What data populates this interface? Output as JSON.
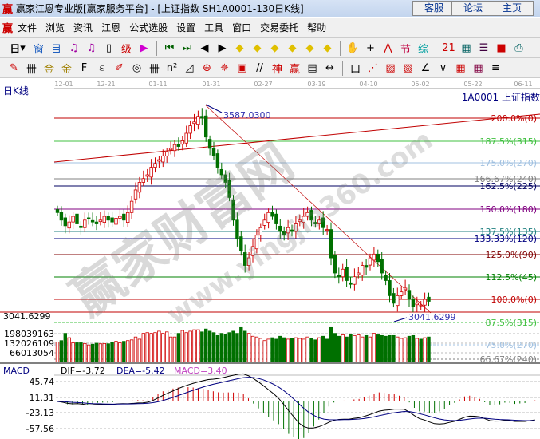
{
  "window": {
    "title": "赢家江恩专业版[赢家服务平台] - [上证指数  SH1A0001-130日K线]",
    "logo": "赢",
    "buttons": [
      "客服",
      "论坛",
      "主页"
    ]
  },
  "menu": {
    "logo": "赢",
    "items": [
      "文件",
      "浏览",
      "资讯",
      "江恩",
      "公式选股",
      "设置",
      "工具",
      "窗口",
      "交易委托",
      "帮助"
    ]
  },
  "toolbar1": {
    "period_label": "日",
    "icons": [
      {
        "n": "window-icon",
        "g": "窗",
        "c": "#2060c0"
      },
      {
        "n": "note-icon",
        "g": "目",
        "c": "#2060c0"
      },
      {
        "n": "chart3-icon",
        "g": "♫",
        "c": "#a000a0"
      },
      {
        "n": "chart9-icon",
        "g": "♫",
        "c": "#a000a0"
      },
      {
        "n": "candle-icon",
        "g": "▯",
        "c": "#000"
      },
      {
        "n": "level-icon",
        "g": "级",
        "c": "#c00"
      },
      {
        "n": "flag-icon",
        "g": "▶",
        "c": "#d000d0"
      },
      {
        "n": "first-icon",
        "g": "⏮",
        "c": "#006000"
      },
      {
        "n": "last-icon",
        "g": "⏭",
        "c": "#006000"
      },
      {
        "n": "prev-icon",
        "g": "◀",
        "c": "#000"
      },
      {
        "n": "next-icon",
        "g": "▶",
        "c": "#000"
      },
      {
        "n": "zoom-left-icon",
        "g": "◆",
        "c": "#e0c000"
      },
      {
        "n": "zoom-right-icon",
        "g": "◆",
        "c": "#e0c000"
      },
      {
        "n": "expand-icon",
        "g": "◆",
        "c": "#e0c000"
      },
      {
        "n": "shrink-icon",
        "g": "◆",
        "c": "#e0c000"
      },
      {
        "n": "vexpand-icon",
        "g": "◆",
        "c": "#e0c000"
      },
      {
        "n": "vshrink-icon",
        "g": "◆",
        "c": "#e0c000"
      },
      {
        "n": "hand-icon",
        "g": "✋",
        "c": "#000"
      },
      {
        "n": "crosshair-icon",
        "g": "+",
        "c": "#000"
      },
      {
        "n": "line-icon",
        "g": "⋀",
        "c": "#c00"
      },
      {
        "n": "section-icon",
        "g": "节",
        "c": "#c00040"
      },
      {
        "n": "gann-icon",
        "g": "综",
        "c": "#00a0a0"
      },
      {
        "n": "calendar-icon",
        "g": "21",
        "c": "#c00"
      },
      {
        "n": "calculator-icon",
        "g": "▦",
        "c": "#006060"
      },
      {
        "n": "report-icon",
        "g": "☰",
        "c": "#400040"
      },
      {
        "n": "save-icon",
        "g": "■",
        "c": "#c00"
      },
      {
        "n": "print-icon",
        "g": "⎙",
        "c": "#006060"
      }
    ]
  },
  "toolbar2": {
    "icons": [
      {
        "n": "pen-icon",
        "g": "✎",
        "c": "#c00"
      },
      {
        "n": "grid-icon",
        "g": "卌",
        "c": "#000"
      },
      {
        "n": "gold1-icon",
        "g": "金",
        "c": "#a08000"
      },
      {
        "n": "gold2-icon",
        "g": "金",
        "c": "#a08000"
      },
      {
        "n": "fib-icon",
        "g": "F",
        "c": "#000"
      },
      {
        "n": "spiral-icon",
        "g": "ಽ",
        "c": "#000"
      },
      {
        "n": "eraser-icon",
        "g": "✐",
        "c": "#c00"
      },
      {
        "n": "circle-icon",
        "g": "◎",
        "c": "#000"
      },
      {
        "n": "lines-icon",
        "g": "卌",
        "c": "#000"
      },
      {
        "n": "n2-icon",
        "g": "n²",
        "c": "#000"
      },
      {
        "n": "angle-icon",
        "g": "◿",
        "c": "#000"
      },
      {
        "n": "target-icon",
        "g": "⊕",
        "c": "#c00"
      },
      {
        "n": "star-icon",
        "g": "✵",
        "c": "#c00"
      },
      {
        "n": "square-icon",
        "g": "▣",
        "c": "#c00"
      },
      {
        "n": "parallel-icon",
        "g": "//",
        "c": "#000"
      },
      {
        "n": "god-icon",
        "g": "神",
        "c": "#c00"
      },
      {
        "n": "win-icon",
        "g": "赢",
        "c": "#c00"
      },
      {
        "n": "ruler-icon",
        "g": "▤",
        "c": "#000"
      },
      {
        "n": "width-icon",
        "g": "↔",
        "c": "#000"
      },
      {
        "n": "box-icon",
        "g": "口",
        "c": "#000"
      },
      {
        "n": "fan-icon",
        "g": "⋰",
        "c": "#c00"
      },
      {
        "n": "gann-box-icon",
        "g": "▨",
        "c": "#c00"
      },
      {
        "n": "gann-fan-icon",
        "g": "▧",
        "c": "#c00"
      },
      {
        "n": "angle-line-icon",
        "g": "∠",
        "c": "#000"
      },
      {
        "n": "wave-icon",
        "g": "∨",
        "c": "#000"
      },
      {
        "n": "grid1-icon",
        "g": "▦",
        "c": "#c00"
      },
      {
        "n": "grid2-icon",
        "g": "▦",
        "c": "#800040"
      },
      {
        "n": "hatch-icon",
        "g": "≡",
        "c": "#000"
      }
    ]
  },
  "chart_data": {
    "type": "candlestick",
    "title": "日K线",
    "symbol_label": "1A0001  上证指数",
    "date_ticks": [
      "12-01",
      "12-21",
      "01-11",
      "01-31",
      "02-27",
      "03-19",
      "04-10",
      "05-02",
      "05-22",
      "06-11"
    ],
    "high_label": "3587.0300",
    "low_label": "3041.6299",
    "left_price_label": "3041.6299",
    "high": 3587.03,
    "low": 3041.6299,
    "closes": [
      3320,
      3300,
      3285,
      3295,
      3310,
      3290,
      3280,
      3300,
      3305,
      3295,
      3290,
      3300,
      3310,
      3300,
      3295,
      3305,
      3310,
      3300,
      3320,
      3350,
      3380,
      3400,
      3410,
      3420,
      3440,
      3450,
      3460,
      3470,
      3480,
      3490,
      3500,
      3495,
      3510,
      3530,
      3550,
      3560,
      3575,
      3570,
      3520,
      3490,
      3470,
      3440,
      3420,
      3400,
      3360,
      3300,
      3250,
      3220,
      3180,
      3200,
      3230,
      3260,
      3280,
      3300,
      3320,
      3310,
      3290,
      3270,
      3260,
      3280,
      3270,
      3290,
      3300,
      3310,
      3320,
      3300,
      3290,
      3300,
      3280,
      3275,
      3200,
      3160,
      3150,
      3170,
      3140,
      3130,
      3150,
      3160,
      3180,
      3175,
      3200,
      3210,
      3190,
      3160,
      3140,
      3100,
      3080,
      3100,
      3110,
      3120,
      3090,
      3070,
      3080,
      3075,
      3090,
      3085
    ],
    "fib_levels": [
      {
        "label": "200.0%(0)",
        "color": "#c00000"
      },
      {
        "label": "187.5%(315)",
        "color": "#40c040"
      },
      {
        "label": "175.0%(270)",
        "color": "#a0c0e0"
      },
      {
        "label": "166.67%(240)",
        "color": "#808080"
      },
      {
        "label": "162.5%(225)",
        "color": "#000060"
      },
      {
        "label": "150.0%(180)",
        "color": "#800080"
      },
      {
        "label": "137.5%(135)",
        "color": "#208080"
      },
      {
        "label": "133.33%(120)",
        "color": "#000080"
      },
      {
        "label": "125.0%(90)",
        "color": "#800000"
      },
      {
        "label": "112.5%(45)",
        "color": "#008000"
      },
      {
        "label": "100.0%(0)",
        "color": "#c00000"
      },
      {
        "label": "87.5%(315)",
        "color": "#40c040"
      },
      {
        "label": "75.0%(270)",
        "color": "#a0c0e0"
      },
      {
        "label": "66.67%(240)",
        "color": "#808080"
      }
    ],
    "volume": {
      "ticks": [
        "198039163",
        "132026109",
        "66013054"
      ],
      "values": [
        140,
        150,
        200,
        170,
        135,
        135,
        135,
        130,
        120,
        125,
        132,
        128,
        130,
        128,
        140,
        145,
        135,
        145,
        150,
        155,
        175,
        160,
        200,
        205,
        200,
        205,
        215,
        200,
        210,
        175,
        175,
        200,
        220,
        205,
        215,
        225,
        225,
        210,
        230,
        215,
        205,
        185,
        200,
        195,
        205,
        215,
        200,
        240,
        215,
        200,
        180,
        175,
        165,
        150,
        160,
        170,
        160,
        180,
        170,
        160,
        165,
        170,
        165,
        160,
        175,
        165,
        155,
        170,
        180,
        160,
        240,
        200,
        180,
        190,
        175,
        195,
        185,
        190,
        175,
        185,
        175,
        200,
        190,
        185,
        180,
        185,
        185,
        175,
        165,
        170,
        180,
        185,
        165,
        160,
        170,
        175
      ]
    },
    "macd": {
      "label": "MACD",
      "dif_label": "DIF=-3.72",
      "dea_label": "DEA=-5.42",
      "macd_label": "MACD=3.40",
      "ticks": [
        "45.74",
        "11.31",
        "-23.13",
        "-57.56"
      ]
    }
  },
  "watermark": {
    "text1": "赢家财富网",
    "text2": "www.yingjia360.com"
  },
  "colors": {
    "up": "#d00000",
    "down": "#007000",
    "dif": "#000000",
    "dea": "#000080"
  }
}
